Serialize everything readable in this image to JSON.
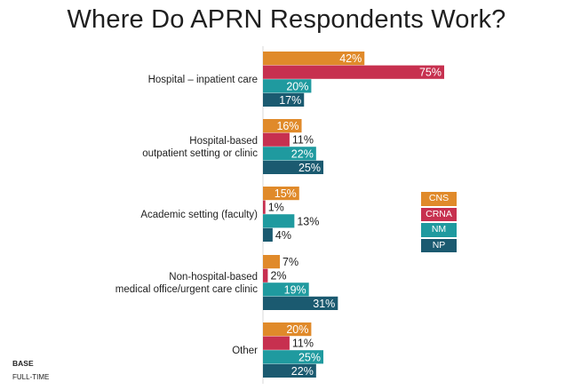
{
  "chart_data": {
    "type": "bar",
    "orientation": "horizontal",
    "title": "Where Do APRN Respondents Work?",
    "categories": [
      [
        "Hospital – inpatient care"
      ],
      [
        "Hospital-based",
        "outpatient setting or clinic"
      ],
      [
        "Academic setting (faculty)"
      ],
      [
        "Non-hospital-based",
        "medical office/urgent care clinic"
      ],
      [
        "Other"
      ]
    ],
    "series": [
      {
        "name": "CNS",
        "color": "#e08a2a",
        "values": [
          42,
          16,
          15,
          7,
          20
        ],
        "labels": [
          "42%",
          "16%",
          "15%",
          "7%",
          "20%"
        ]
      },
      {
        "name": "CRNA",
        "color": "#c7304f",
        "values": [
          75,
          11,
          1,
          2,
          11
        ],
        "labels": [
          "75%",
          "11%",
          "1%",
          "2%",
          "11%"
        ]
      },
      {
        "name": "NM",
        "color": "#1f9a9f",
        "values": [
          20,
          22,
          13,
          19,
          25
        ],
        "labels": [
          "20%",
          "22%",
          "13%",
          "19%",
          "25%"
        ]
      },
      {
        "name": "NP",
        "color": "#1b5a70",
        "values": [
          17,
          25,
          4,
          31,
          22
        ],
        "labels": [
          "17%",
          "25%",
          "4%",
          "31%",
          "22%"
        ]
      }
    ],
    "value_unit": "%",
    "legend_position": "right",
    "grid": false
  },
  "footer": {
    "base_label": "BASE",
    "base_value": "FULL-TIME"
  }
}
